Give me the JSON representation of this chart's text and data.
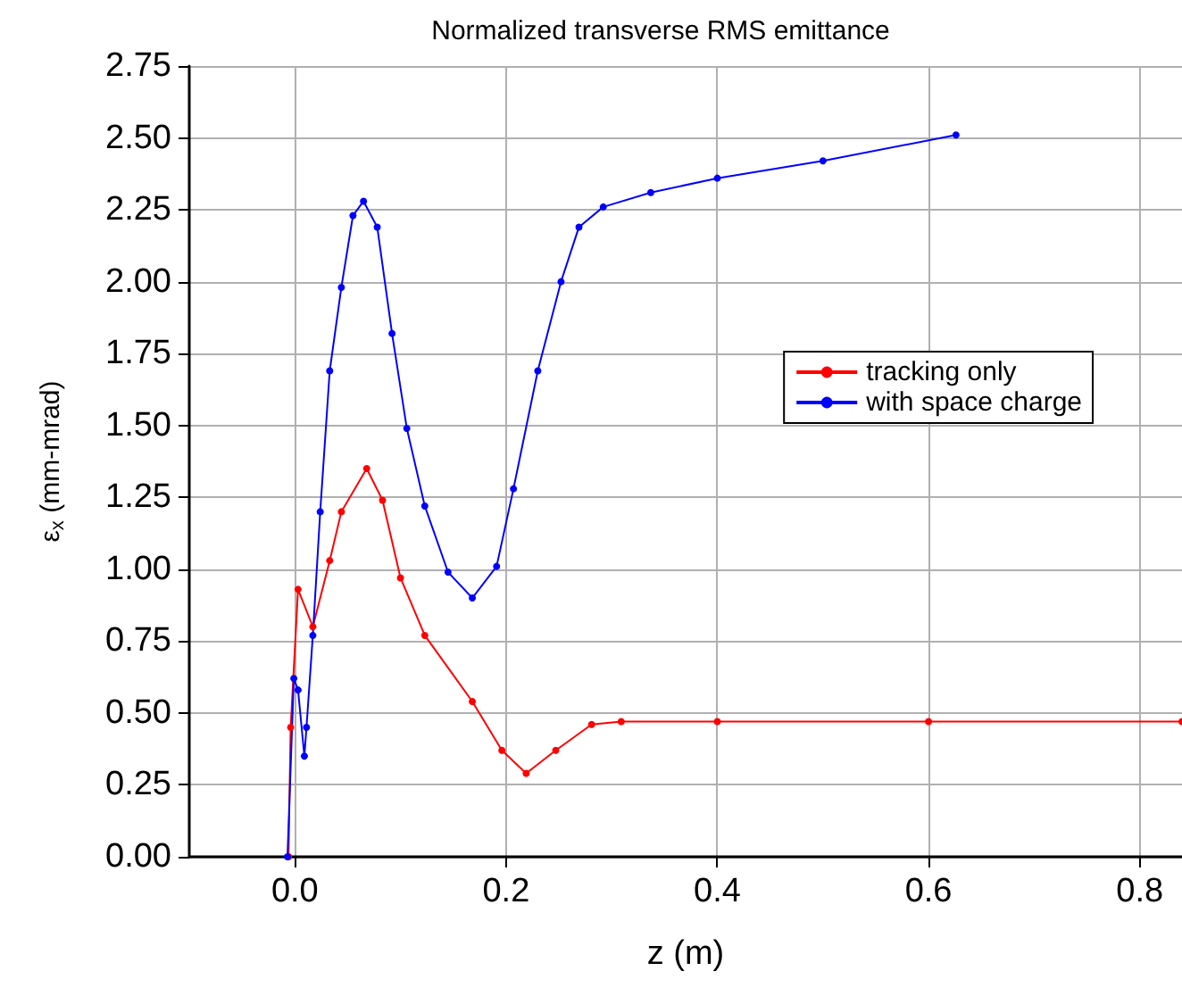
{
  "chart_data": {
    "type": "line",
    "title": "Normalized transverse RMS emittance",
    "xlabel": "z (m)",
    "ylabel": "ε$_{x}$ (mm-mrad)",
    "xlim": [
      -0.1,
      0.84
    ],
    "xticks": [
      {
        "value": 0,
        "label": "0.0"
      },
      {
        "value": 0.2,
        "label": "0.2"
      },
      {
        "value": 0.4,
        "label": "0.4"
      },
      {
        "value": 0.6,
        "label": "0.6"
      },
      {
        "value": 0.8,
        "label": "0.8"
      }
    ],
    "ylim": [
      0,
      2.75
    ],
    "yticks": [
      {
        "value": 0,
        "label": "0.00"
      },
      {
        "value": 0.25,
        "label": "0.25"
      },
      {
        "value": 0.5,
        "label": "0.50"
      },
      {
        "value": 0.75,
        "label": "0.75"
      },
      {
        "value": 1,
        "label": "1.00"
      },
      {
        "value": 1.25,
        "label": "1.25"
      },
      {
        "value": 1.5,
        "label": "1.50"
      },
      {
        "value": 1.75,
        "label": "1.75"
      },
      {
        "value": 2,
        "label": "2.00"
      },
      {
        "value": 2.25,
        "label": "2.25"
      },
      {
        "value": 2.5,
        "label": "2.50"
      },
      {
        "value": 2.75,
        "label": "2.75"
      }
    ],
    "grid": true,
    "legend": "right",
    "marker": "circle",
    "line_style": "solid",
    "series": [
      {
        "name": "tracking only",
        "color": "#ff0000",
        "x": [
          -0.006,
          -0.004,
          0.003,
          0.017,
          0.033,
          0.044,
          0.068,
          0.083,
          0.1,
          0.123,
          0.168,
          0.196,
          0.219,
          0.247,
          0.281,
          0.309,
          0.4,
          0.6,
          0.84
        ],
        "values": [
          0,
          0.45,
          0.93,
          0.8,
          1.03,
          1.2,
          1.35,
          1.24,
          0.97,
          0.77,
          0.54,
          0.37,
          0.29,
          0.37,
          0.46,
          0.47,
          0.47,
          0.47,
          0.47
        ]
      },
      {
        "name": "with space charge",
        "color": "#0000ff",
        "x": [
          -0.007,
          -0.001,
          0.003,
          0.009,
          0.011,
          0.017,
          0.024,
          0.033,
          0.044,
          0.055,
          0.065,
          0.078,
          0.092,
          0.106,
          0.123,
          0.145,
          0.168,
          0.191,
          0.207,
          0.23,
          0.252,
          0.269,
          0.292,
          0.337,
          0.4,
          0.5,
          0.626
        ],
        "values": [
          0,
          0.62,
          0.58,
          0.35,
          0.45,
          0.77,
          1.2,
          1.69,
          1.98,
          2.23,
          2.28,
          2.19,
          1.82,
          1.49,
          1.22,
          0.99,
          0.9,
          1.01,
          1.28,
          1.69,
          2.0,
          2.19,
          2.26,
          2.31,
          2.36,
          2.42,
          2.51
        ]
      }
    ]
  }
}
